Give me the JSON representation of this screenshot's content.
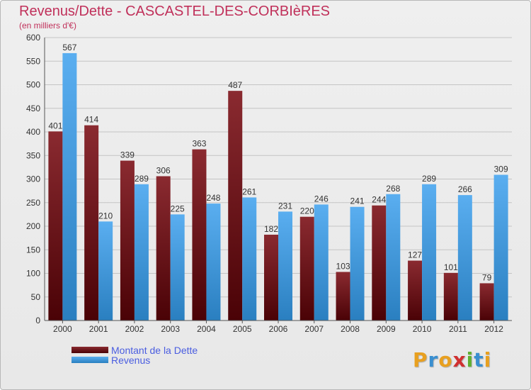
{
  "header": {
    "title": "Revenus/Dette - CASCASTEL-DES-CORBIèRES",
    "subtitle": "(en milliers d'€)"
  },
  "legend": {
    "items": [
      {
        "label": "Montant de la Dette",
        "color": "#6b0f14"
      },
      {
        "label": "Revenus",
        "color": "#3d9ee0"
      }
    ]
  },
  "logo": {
    "letters": [
      {
        "char": "P",
        "color": "#e8a020"
      },
      {
        "char": "r",
        "color": "#3a8fd0"
      },
      {
        "char": "o",
        "color": "#e8a020"
      },
      {
        "char": "x",
        "color": "#d03030"
      },
      {
        "char": "i",
        "color": "#60b030"
      },
      {
        "char": "t",
        "color": "#3a8fd0"
      },
      {
        "char": "i",
        "color": "#e8a020"
      }
    ]
  },
  "chart_data": {
    "type": "bar",
    "title": "Revenus/Dette - CASCASTEL-DES-CORBIèRES",
    "subtitle": "(en milliers d'€)",
    "categories": [
      "2000",
      "2001",
      "2002",
      "2003",
      "2004",
      "2005",
      "2006",
      "2007",
      "2008",
      "2009",
      "2010",
      "2011",
      "2012"
    ],
    "series": [
      {
        "name": "Montant de la Dette",
        "color": "#6b0f14",
        "values": [
          401,
          414,
          339,
          306,
          363,
          487,
          182,
          220,
          103,
          244,
          127,
          101,
          79
        ]
      },
      {
        "name": "Revenus",
        "color": "#3d9ee0",
        "values": [
          567,
          210,
          289,
          225,
          248,
          261,
          231,
          246,
          241,
          268,
          289,
          266,
          309
        ]
      }
    ],
    "ylim": [
      0,
      600
    ],
    "yticks": [
      0,
      50,
      100,
      150,
      200,
      250,
      300,
      350,
      400,
      450,
      500,
      550,
      600
    ],
    "grid": true,
    "legend_position": "bottom-left"
  }
}
